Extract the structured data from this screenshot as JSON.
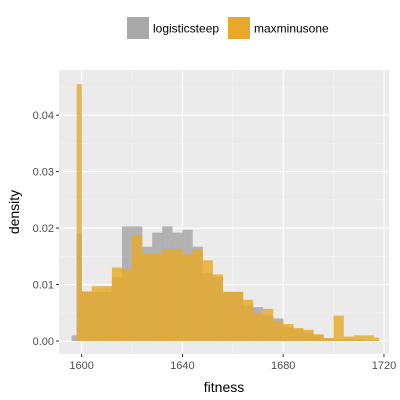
{
  "chart_data": {
    "type": "bar",
    "xlabel": "fitness",
    "ylabel": "density",
    "xlim": [
      1591,
      1722
    ],
    "ylim": [
      -0.0023,
      0.048
    ],
    "x_ticks": [
      1600,
      1640,
      1680,
      1720
    ],
    "y_ticks": [
      0.0,
      0.01,
      0.02,
      0.03,
      0.04
    ],
    "x_tick_labels": [
      "1600",
      "1640",
      "1680",
      "1720"
    ],
    "y_tick_labels": [
      "0.00",
      "0.01",
      "0.02",
      "0.03",
      "0.04"
    ],
    "grid": true,
    "legend": "top",
    "bins": [
      [
        1596,
        1598
      ],
      [
        1598,
        1600
      ],
      [
        1600,
        1602
      ],
      [
        1602,
        1604
      ],
      [
        1604,
        1606
      ],
      [
        1606,
        1608
      ],
      [
        1608,
        1610
      ],
      [
        1610,
        1612
      ],
      [
        1612,
        1614
      ],
      [
        1614,
        1616
      ],
      [
        1616,
        1618
      ],
      [
        1618,
        1620
      ],
      [
        1620,
        1622
      ],
      [
        1622,
        1624
      ],
      [
        1624,
        1626
      ],
      [
        1626,
        1628
      ],
      [
        1628,
        1630
      ],
      [
        1630,
        1632
      ],
      [
        1632,
        1634
      ],
      [
        1634,
        1636
      ],
      [
        1636,
        1638
      ],
      [
        1638,
        1640
      ],
      [
        1640,
        1642
      ],
      [
        1642,
        1644
      ],
      [
        1644,
        1646
      ],
      [
        1646,
        1648
      ],
      [
        1648,
        1650
      ],
      [
        1650,
        1652
      ],
      [
        1652,
        1654
      ],
      [
        1654,
        1656
      ],
      [
        1656,
        1658
      ],
      [
        1658,
        1660
      ],
      [
        1660,
        1662
      ],
      [
        1662,
        1664
      ],
      [
        1664,
        1666
      ],
      [
        1666,
        1668
      ],
      [
        1668,
        1670
      ],
      [
        1670,
        1672
      ],
      [
        1672,
        1674
      ],
      [
        1674,
        1676
      ],
      [
        1676,
        1678
      ],
      [
        1678,
        1680
      ],
      [
        1680,
        1682
      ],
      [
        1682,
        1684
      ],
      [
        1684,
        1686
      ],
      [
        1686,
        1688
      ],
      [
        1688,
        1690
      ],
      [
        1690,
        1692
      ],
      [
        1692,
        1694
      ],
      [
        1694,
        1696
      ],
      [
        1696,
        1698
      ],
      [
        1698,
        1700
      ],
      [
        1700,
        1702
      ],
      [
        1702,
        1704
      ],
      [
        1704,
        1706
      ],
      [
        1706,
        1708
      ],
      [
        1708,
        1710
      ],
      [
        1710,
        1712
      ],
      [
        1712,
        1714
      ],
      [
        1714,
        1716
      ],
      [
        1716,
        1718
      ]
    ],
    "series": [
      {
        "name": "logisticsteep",
        "color": "#a8a8a8",
        "values": [
          0.001,
          0.019,
          0.0087,
          0.0087,
          0.0087,
          0.0087,
          0.0087,
          0.0087,
          0.0113,
          0.0113,
          0.0203,
          0.0203,
          0.0203,
          0.0203,
          0.0167,
          0.0167,
          0.0192,
          0.0192,
          0.0203,
          0.0203,
          0.0192,
          0.0192,
          0.0197,
          0.0197,
          0.0167,
          0.0167,
          0.012,
          0.012,
          0.0113,
          0.0113,
          0.0087,
          0.0087,
          0.0087,
          0.0087,
          0.0063,
          0.0063,
          0.006,
          0.006,
          0.0045,
          0.0045,
          0.004,
          0.004,
          0.0025,
          0.0025,
          0.002,
          0.002,
          0.0015,
          0.0015,
          0.001,
          0.001,
          0.0005,
          0.0005,
          0.0003,
          0.0003,
          0.0003,
          0.0003,
          0.0003,
          0.0003,
          0.0001,
          0.0001,
          0.0001
        ]
      },
      {
        "name": "maxminusone",
        "color": "#e8a82a",
        "values": [
          0,
          0.0455,
          0.0088,
          0.0088,
          0.0097,
          0.0097,
          0.0097,
          0.0097,
          0.013,
          0.013,
          0.0127,
          0.0127,
          0.0187,
          0.0187,
          0.0155,
          0.0155,
          0.0155,
          0.0155,
          0.0163,
          0.0163,
          0.0163,
          0.0163,
          0.0153,
          0.0153,
          0.0163,
          0.0163,
          0.0143,
          0.0143,
          0.0118,
          0.0118,
          0.0087,
          0.0087,
          0.0087,
          0.0087,
          0.0073,
          0.0073,
          0.005,
          0.005,
          0.0057,
          0.0057,
          0.0035,
          0.0035,
          0.003,
          0.003,
          0.0023,
          0.0023,
          0.002,
          0.002,
          0.0012,
          0.0012,
          0.0005,
          0.0005,
          0.0045,
          0.0045,
          0.0008,
          0.0008,
          0.001,
          0.001,
          0.001,
          0.001,
          0.0006
        ]
      }
    ]
  }
}
